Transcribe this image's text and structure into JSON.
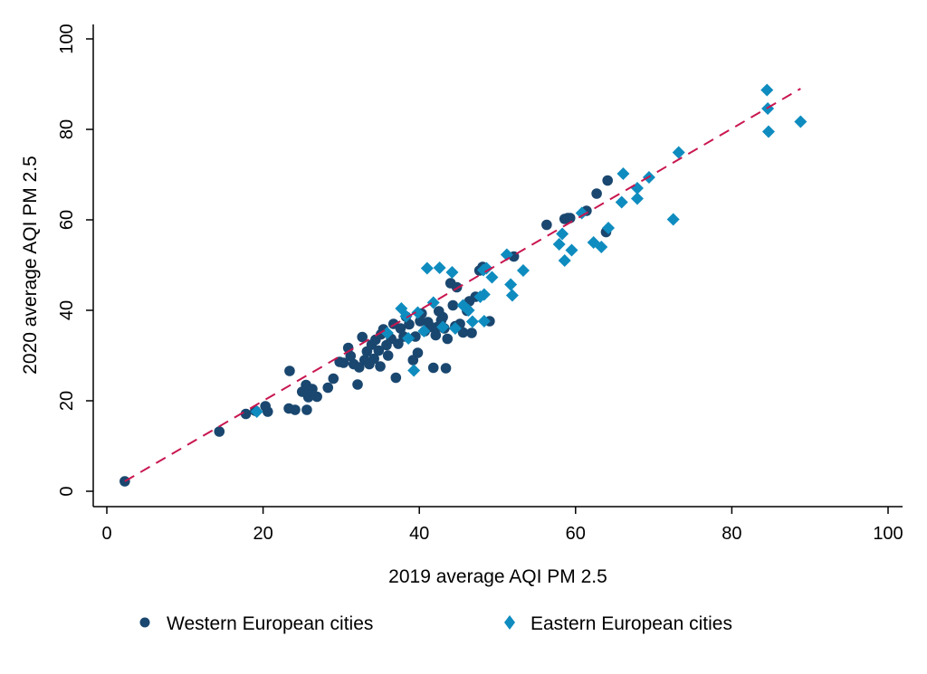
{
  "chart_data": {
    "type": "scatter",
    "title": "",
    "xlabel": "2019 average AQI PM 2.5",
    "ylabel": "2020 average AQI PM 2.5",
    "xlim": [
      0,
      100
    ],
    "ylim": [
      0,
      100
    ],
    "xticks": [
      "0",
      "20",
      "40",
      "60",
      "80",
      "100"
    ],
    "yticks": [
      "0",
      "20",
      "40",
      "60",
      "80",
      "100"
    ],
    "grid": false,
    "legend_position": "bottom",
    "colors": {
      "western": "#1a476f",
      "eastern": "#0f8cbf",
      "fit_line": "#c8164f",
      "axis": "#000000"
    },
    "fit_line": {
      "x": [
        2.3,
        88.8
      ],
      "y": [
        2.2,
        89.0
      ],
      "style": "dashed"
    },
    "series": [
      {
        "name": "Western European cities",
        "marker": "circle",
        "points": [
          [
            2.3,
            2.2
          ],
          [
            14.4,
            13.2
          ],
          [
            17.8,
            17.1
          ],
          [
            19.0,
            17.8
          ],
          [
            20.3,
            18.8
          ],
          [
            20.6,
            17.6
          ],
          [
            23.3,
            18.3
          ],
          [
            23.4,
            26.6
          ],
          [
            24.1,
            18.0
          ],
          [
            25.0,
            22.0
          ],
          [
            25.6,
            18.0
          ],
          [
            25.5,
            23.5
          ],
          [
            25.8,
            20.8
          ],
          [
            26.1,
            22.1
          ],
          [
            26.3,
            22.6
          ],
          [
            26.9,
            20.9
          ],
          [
            28.3,
            22.9
          ],
          [
            29.0,
            24.9
          ],
          [
            29.8,
            28.6
          ],
          [
            30.3,
            28.4
          ],
          [
            30.9,
            31.7
          ],
          [
            31.2,
            29.9
          ],
          [
            31.6,
            28.1
          ],
          [
            32.1,
            23.6
          ],
          [
            32.3,
            27.4
          ],
          [
            32.7,
            34.1
          ],
          [
            33.0,
            29.0
          ],
          [
            33.3,
            30.9
          ],
          [
            33.6,
            28.1
          ],
          [
            33.9,
            32.4
          ],
          [
            34.2,
            29.3
          ],
          [
            34.4,
            33.5
          ],
          [
            34.8,
            31.1
          ],
          [
            35.0,
            27.6
          ],
          [
            35.1,
            34.7
          ],
          [
            35.4,
            35.8
          ],
          [
            35.8,
            32.3
          ],
          [
            36.0,
            30.0
          ],
          [
            36.4,
            33.7
          ],
          [
            36.7,
            37.0
          ],
          [
            37.0,
            25.1
          ],
          [
            37.3,
            32.6
          ],
          [
            37.6,
            36.0
          ],
          [
            38.0,
            34.2
          ],
          [
            38.3,
            38.6
          ],
          [
            38.7,
            36.9
          ],
          [
            39.2,
            29.0
          ],
          [
            39.5,
            34.2
          ],
          [
            39.8,
            30.6
          ],
          [
            40.1,
            37.6
          ],
          [
            40.3,
            39.3
          ],
          [
            40.7,
            35.4
          ],
          [
            41.1,
            37.4
          ],
          [
            41.5,
            36.3
          ],
          [
            41.8,
            27.3
          ],
          [
            42.1,
            34.5
          ],
          [
            42.3,
            36.3
          ],
          [
            42.5,
            39.8
          ],
          [
            42.8,
            37.8
          ],
          [
            43.0,
            38.5
          ],
          [
            43.2,
            36.0
          ],
          [
            43.4,
            27.2
          ],
          [
            43.6,
            33.7
          ],
          [
            44.0,
            46.0
          ],
          [
            44.3,
            41.1
          ],
          [
            44.6,
            36.5
          ],
          [
            44.8,
            45.1
          ],
          [
            45.2,
            37.0
          ],
          [
            45.6,
            35.1
          ],
          [
            46.1,
            39.9
          ],
          [
            46.4,
            42.0
          ],
          [
            46.7,
            35.0
          ],
          [
            47.2,
            43.0
          ],
          [
            47.7,
            48.8
          ],
          [
            48.1,
            49.6
          ],
          [
            48.4,
            49.3
          ],
          [
            49.0,
            37.6
          ],
          [
            52.1,
            51.9
          ],
          [
            56.3,
            58.9
          ],
          [
            58.6,
            60.2
          ],
          [
            59.0,
            60.4
          ],
          [
            59.3,
            60.4
          ],
          [
            61.4,
            62.0
          ],
          [
            62.7,
            65.8
          ],
          [
            63.9,
            57.3
          ],
          [
            64.1,
            68.7
          ]
        ]
      },
      {
        "name": "Eastern European cities",
        "marker": "diamond",
        "points": [
          [
            19.2,
            17.6
          ],
          [
            35.9,
            35.0
          ],
          [
            37.7,
            40.4
          ],
          [
            38.6,
            33.8
          ],
          [
            38.3,
            38.7
          ],
          [
            39.3,
            26.7
          ],
          [
            39.8,
            39.5
          ],
          [
            40.6,
            35.4
          ],
          [
            41.0,
            49.3
          ],
          [
            41.8,
            41.7
          ],
          [
            42.6,
            49.4
          ],
          [
            43.0,
            36.3
          ],
          [
            44.2,
            48.4
          ],
          [
            44.6,
            36.0
          ],
          [
            45.6,
            41.1
          ],
          [
            46.3,
            40.0
          ],
          [
            46.8,
            37.5
          ],
          [
            47.8,
            43.0
          ],
          [
            48.3,
            43.5
          ],
          [
            48.2,
            48.9
          ],
          [
            48.3,
            37.6
          ],
          [
            48.6,
            49.3
          ],
          [
            49.3,
            47.3
          ],
          [
            51.2,
            52.3
          ],
          [
            51.7,
            45.7
          ],
          [
            51.9,
            43.3
          ],
          [
            53.3,
            48.8
          ],
          [
            57.9,
            54.6
          ],
          [
            58.3,
            56.9
          ],
          [
            58.6,
            51.0
          ],
          [
            59.5,
            53.3
          ],
          [
            60.8,
            61.5
          ],
          [
            62.3,
            55.0
          ],
          [
            63.3,
            54.0
          ],
          [
            64.2,
            58.2
          ],
          [
            65.9,
            63.9
          ],
          [
            66.1,
            70.2
          ],
          [
            67.9,
            64.7
          ],
          [
            67.9,
            67.0
          ],
          [
            69.4,
            69.4
          ],
          [
            72.5,
            60.1
          ],
          [
            73.2,
            74.9
          ],
          [
            84.5,
            88.7
          ],
          [
            84.6,
            84.6
          ],
          [
            84.7,
            79.5
          ],
          [
            88.8,
            81.7
          ]
        ]
      }
    ]
  }
}
